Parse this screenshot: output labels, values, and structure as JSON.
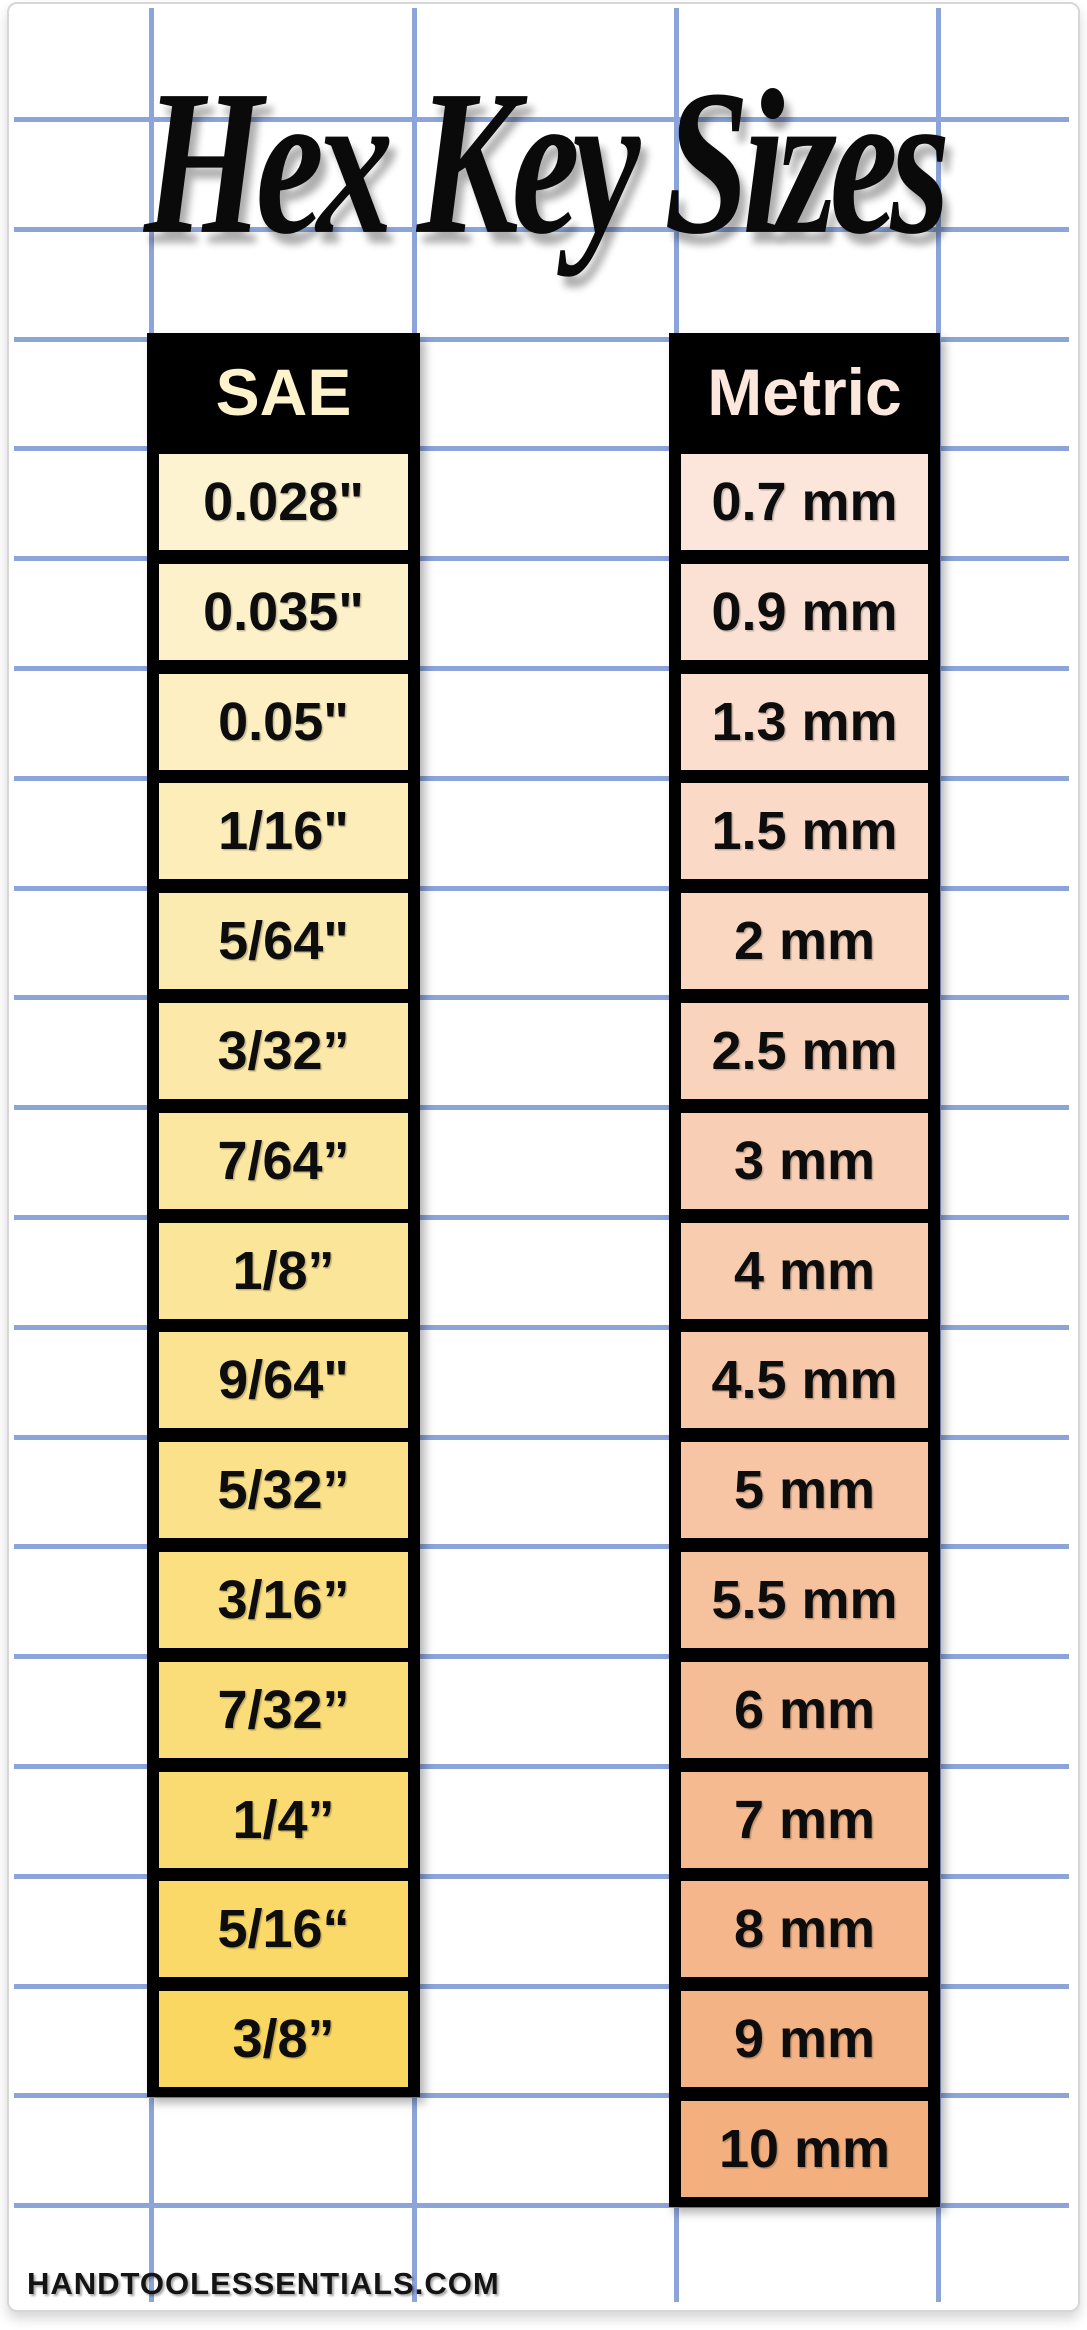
{
  "title": "Hex Key Sizes",
  "watermark": "HANDTOOLESSENTIALS.COM",
  "grid_color": "#8BA4D9",
  "columns": {
    "sae": {
      "header": "SAE",
      "header_text_color": "#FCF2CC",
      "rows": [
        {
          "label": "0.028\"",
          "bg": "#FDF3D1"
        },
        {
          "label": "0.035\"",
          "bg": "#FDF1C9"
        },
        {
          "label": "0.05\"",
          "bg": "#FDEFC1"
        },
        {
          "label": "1/16\"",
          "bg": "#FCEDB9"
        },
        {
          "label": "5/64\"",
          "bg": "#FCEBB1"
        },
        {
          "label": "3/32”",
          "bg": "#FCE9A9"
        },
        {
          "label": "7/64”",
          "bg": "#FCE7A1"
        },
        {
          "label": "1/8”",
          "bg": "#FBE599"
        },
        {
          "label": "9/64\"",
          "bg": "#FBE391"
        },
        {
          "label": "5/32”",
          "bg": "#FBE189"
        },
        {
          "label": "3/16”",
          "bg": "#FBDF81"
        },
        {
          "label": "7/32”",
          "bg": "#FADD79"
        },
        {
          "label": "1/4”",
          "bg": "#FADB71"
        },
        {
          "label": "5/16“",
          "bg": "#FAD969"
        },
        {
          "label": "3/8”",
          "bg": "#FAD761"
        }
      ]
    },
    "metric": {
      "header": "Metric",
      "header_text_color": "#FCE7DC",
      "rows": [
        {
          "label": "0.7 mm",
          "bg": "#FCE5DA"
        },
        {
          "label": "0.9 mm",
          "bg": "#FBE1D4"
        },
        {
          "label": "1.3 mm",
          "bg": "#FBDECE"
        },
        {
          "label": "1.5 mm",
          "bg": "#FADAC7"
        },
        {
          "label": "2 mm",
          "bg": "#FAD7C1"
        },
        {
          "label": "2.5 mm",
          "bg": "#F9D3BB"
        },
        {
          "label": "3 mm",
          "bg": "#F8CFB5"
        },
        {
          "label": "4 mm",
          "bg": "#F8CCAF"
        },
        {
          "label": "4.5 mm",
          "bg": "#F7C8A9"
        },
        {
          "label": "5 mm",
          "bg": "#F7C5A3"
        },
        {
          "label": "5.5 mm",
          "bg": "#F6C19D"
        },
        {
          "label": "6 mm",
          "bg": "#F5BD96"
        },
        {
          "label": "7 mm",
          "bg": "#F5BA90"
        },
        {
          "label": "8 mm",
          "bg": "#F4B68A"
        },
        {
          "label": "9 mm",
          "bg": "#F4B384"
        },
        {
          "label": "10 mm",
          "bg": "#F3AF7E"
        }
      ]
    }
  },
  "chart_data": {
    "type": "table",
    "title": "Hex Key Sizes",
    "columns": [
      "SAE",
      "Metric"
    ],
    "sae_values": [
      "0.028\"",
      "0.035\"",
      "0.05\"",
      "1/16\"",
      "5/64\"",
      "3/32\"",
      "7/64\"",
      "1/8\"",
      "9/64\"",
      "5/32\"",
      "3/16\"",
      "7/32\"",
      "1/4\"",
      "5/16\"",
      "3/8\""
    ],
    "metric_values": [
      "0.7 mm",
      "0.9 mm",
      "1.3 mm",
      "1.5 mm",
      "2 mm",
      "2.5 mm",
      "3 mm",
      "4 mm",
      "4.5 mm",
      "5 mm",
      "5.5 mm",
      "6 mm",
      "7 mm",
      "8 mm",
      "9 mm",
      "10 mm"
    ],
    "layout": {
      "grid": "notebook-style blue grid",
      "sae_color_scale": [
        "#FDF3D1",
        "#FAD761"
      ],
      "metric_color_scale": [
        "#FCE5DA",
        "#F3AF7E"
      ]
    }
  }
}
